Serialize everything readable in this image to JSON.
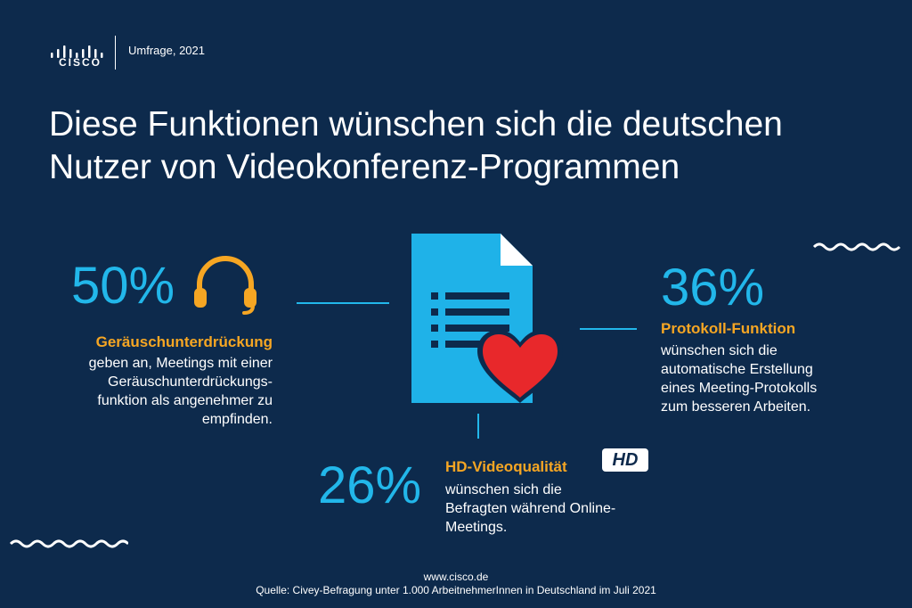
{
  "header": {
    "brand": "CISCO",
    "survey_label": "Umfrage, 2021"
  },
  "title": {
    "line1": "Diese Funktionen wünschen sich die deutschen",
    "line2": "Nutzer von Videokonferenz-Programmen"
  },
  "stats": [
    {
      "percent": "50%",
      "label": "Geräuschunterdrückung",
      "description": [
        "geben an, Meetings mit einer",
        "Geräuschunterdrückungs-",
        "funktion als angenehmer zu",
        "empfinden."
      ],
      "icon": "headphones-icon"
    },
    {
      "percent": "36%",
      "label": "Protokoll-Funktion",
      "description": [
        "wünschen sich die",
        "automatische Erstellung",
        "eines Meeting-Protokolls",
        "zum besseren Arbeiten."
      ],
      "icon": "document-heart-icon"
    },
    {
      "percent": "26%",
      "label": "HD-Videoqualität",
      "badge": "HD",
      "description": [
        "wünschen sich die",
        "Befragten während Online-",
        "Meetings."
      ],
      "icon": "hd-badge-icon"
    }
  ],
  "footer": {
    "url": "www.cisco.de",
    "source": "Quelle: Civey-Befragung unter 1.000 ArbeitnehmerInnen in Deutschland im Juli 2021"
  },
  "colors": {
    "background": "#0d2a4c",
    "accent_blue": "#22b7ea",
    "accent_orange": "#f6a623",
    "heart_red": "#e8282b",
    "document_blue": "#1fb2e8"
  }
}
